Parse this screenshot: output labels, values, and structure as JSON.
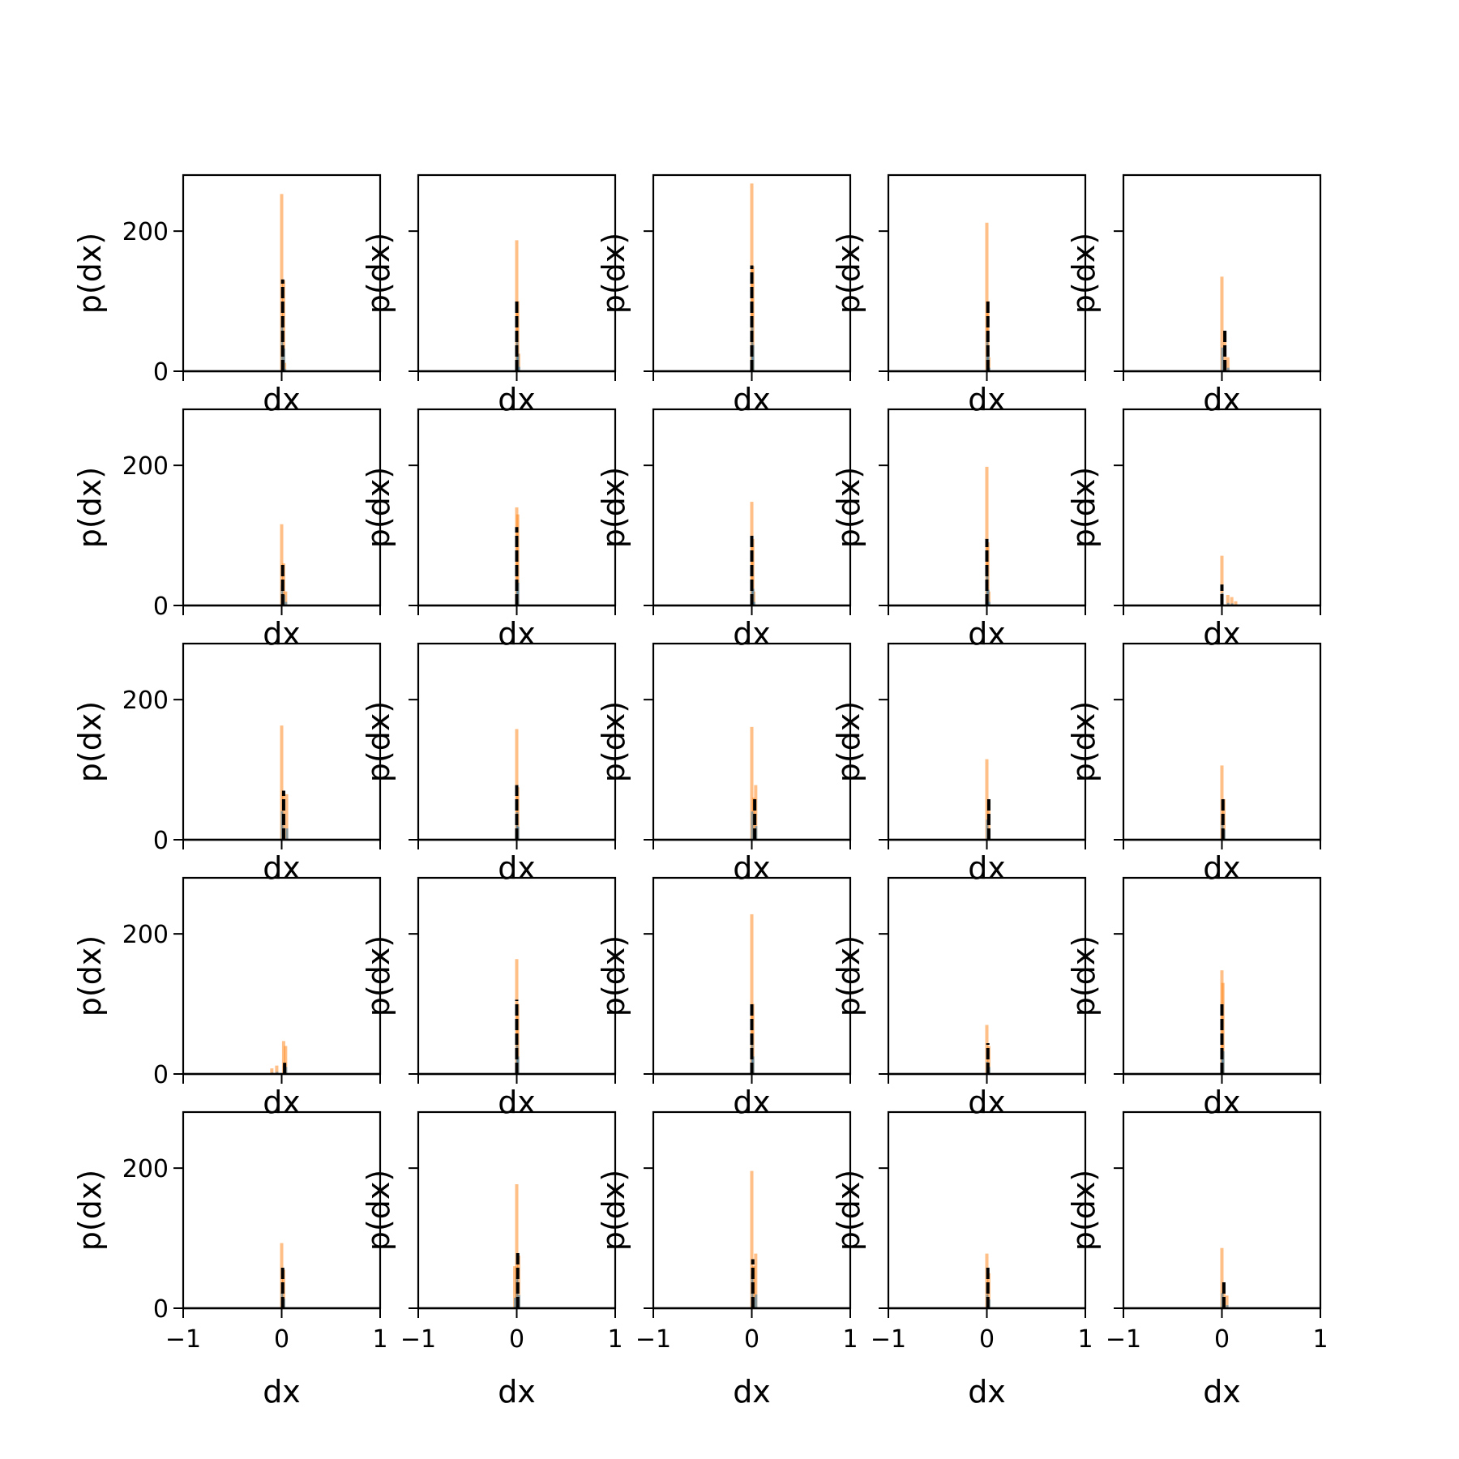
{
  "figure": {
    "rows": 5,
    "cols": 5,
    "xlabel": "dx",
    "ylabel": "p(dx)",
    "colors": {
      "blue": "#1f77b4",
      "orange": "#ff7f0e",
      "black": "#000000"
    }
  },
  "chart_data": [
    {
      "type": "bar",
      "xlabel": "dx",
      "ylabel": "p(dx)",
      "xlim": [
        -1,
        1
      ],
      "ylim": [
        0,
        280
      ],
      "xticks": [
        -1,
        0,
        1
      ],
      "yticks": [
        0,
        200
      ],
      "series": [
        {
          "values": [
            {
              "x": 0.0,
              "y": 253
            },
            {
              "x": 0.02,
              "y": 130
            },
            {
              "x": 0.03,
              "y": 12
            }
          ]
        },
        {
          "values": [
            {
              "x": 0.01,
              "y": 131
            }
          ]
        }
      ]
    },
    {
      "type": "bar",
      "xlabel": "dx",
      "ylabel": "p(dx)",
      "xlim": [
        -1,
        1
      ],
      "ylim": [
        0,
        280
      ],
      "xticks": [
        -1,
        0,
        1
      ],
      "yticks": [
        0,
        200
      ],
      "series": [
        {
          "values": [
            {
              "x": 0.0,
              "y": 187
            },
            {
              "x": 0.01,
              "y": 100
            },
            {
              "x": 0.02,
              "y": 25
            }
          ]
        },
        {
          "values": [
            {
              "x": 0.0,
              "y": 100
            }
          ]
        }
      ]
    },
    {
      "type": "bar",
      "xlabel": "dx",
      "ylabel": "p(dx)",
      "xlim": [
        -1,
        1
      ],
      "ylim": [
        0,
        280
      ],
      "xticks": [
        -1,
        0,
        1
      ],
      "yticks": [
        0,
        200
      ],
      "series": [
        {
          "values": [
            {
              "x": 0.0,
              "y": 268
            },
            {
              "x": 0.01,
              "y": 150
            }
          ]
        },
        {
          "values": [
            {
              "x": 0.0,
              "y": 151
            }
          ]
        }
      ]
    },
    {
      "type": "bar",
      "xlabel": "dx",
      "ylabel": "p(dx)",
      "xlim": [
        -1,
        1
      ],
      "ylim": [
        0,
        280
      ],
      "xticks": [
        -1,
        0,
        1
      ],
      "yticks": [
        0,
        200
      ],
      "series": [
        {
          "values": [
            {
              "x": 0.0,
              "y": 212
            },
            {
              "x": 0.01,
              "y": 100
            },
            {
              "x": 0.02,
              "y": 20
            }
          ]
        },
        {
          "values": [
            {
              "x": 0.01,
              "y": 103
            }
          ]
        }
      ]
    },
    {
      "type": "bar",
      "xlabel": "dx",
      "ylabel": "p(dx)",
      "xlim": [
        -1,
        1
      ],
      "ylim": [
        0,
        280
      ],
      "xticks": [
        -1,
        0,
        1
      ],
      "yticks": [
        0,
        200
      ],
      "series": [
        {
          "values": [
            {
              "x": 0.0,
              "y": 135
            },
            {
              "x": 0.03,
              "y": 57
            },
            {
              "x": 0.06,
              "y": 20
            }
          ]
        },
        {
          "values": [
            {
              "x": 0.03,
              "y": 58
            }
          ]
        }
      ]
    },
    {
      "type": "bar",
      "xlabel": "dx",
      "ylabel": "p(dx)",
      "xlim": [
        -1,
        1
      ],
      "ylim": [
        0,
        280
      ],
      "xticks": [
        -1,
        0,
        1
      ],
      "yticks": [
        0,
        200
      ],
      "series": [
        {
          "values": [
            {
              "x": 0.0,
              "y": 116
            },
            {
              "x": 0.02,
              "y": 60
            },
            {
              "x": 0.04,
              "y": 20
            }
          ]
        },
        {
          "values": [
            {
              "x": 0.01,
              "y": 62
            }
          ]
        }
      ]
    },
    {
      "type": "bar",
      "xlabel": "dx",
      "ylabel": "p(dx)",
      "xlim": [
        -1,
        1
      ],
      "ylim": [
        0,
        280
      ],
      "xticks": [
        -1,
        0,
        1
      ],
      "yticks": [
        0,
        200
      ],
      "series": [
        {
          "values": [
            {
              "x": 0.0,
              "y": 140
            },
            {
              "x": 0.01,
              "y": 130
            }
          ]
        },
        {
          "values": [
            {
              "x": 0.0,
              "y": 112
            }
          ]
        }
      ]
    },
    {
      "type": "bar",
      "xlabel": "dx",
      "ylabel": "p(dx)",
      "xlim": [
        -1,
        1
      ],
      "ylim": [
        0,
        280
      ],
      "xticks": [
        -1,
        0,
        1
      ],
      "yticks": [
        0,
        200
      ],
      "series": [
        {
          "values": [
            {
              "x": 0.0,
              "y": 148
            },
            {
              "x": 0.01,
              "y": 95
            },
            {
              "x": 0.02,
              "y": 20
            }
          ]
        },
        {
          "values": [
            {
              "x": 0.0,
              "y": 100
            }
          ]
        }
      ]
    },
    {
      "type": "bar",
      "xlabel": "dx",
      "ylabel": "p(dx)",
      "xlim": [
        -1,
        1
      ],
      "ylim": [
        0,
        280
      ],
      "xticks": [
        -1,
        0,
        1
      ],
      "yticks": [
        0,
        200
      ],
      "series": [
        {
          "values": [
            {
              "x": 0.0,
              "y": 198
            },
            {
              "x": 0.01,
              "y": 90
            },
            {
              "x": 0.02,
              "y": 20
            }
          ]
        },
        {
          "values": [
            {
              "x": 0.0,
              "y": 95
            }
          ]
        }
      ]
    },
    {
      "type": "bar",
      "xlabel": "dx",
      "ylabel": "p(dx)",
      "xlim": [
        -1,
        1
      ],
      "ylim": [
        0,
        280
      ],
      "xticks": [
        -1,
        0,
        1
      ],
      "yticks": [
        0,
        200
      ],
      "series": [
        {
          "values": [
            {
              "x": 0.0,
              "y": 71
            },
            {
              "x": 0.06,
              "y": 15
            },
            {
              "x": 0.1,
              "y": 12
            },
            {
              "x": 0.14,
              "y": 6
            }
          ]
        },
        {
          "values": [
            {
              "x": 0.0,
              "y": 30
            }
          ]
        }
      ]
    },
    {
      "type": "bar",
      "xlabel": "dx",
      "ylabel": "p(dx)",
      "xlim": [
        -1,
        1
      ],
      "ylim": [
        0,
        280
      ],
      "xticks": [
        -1,
        0,
        1
      ],
      "yticks": [
        0,
        200
      ],
      "series": [
        {
          "values": [
            {
              "x": 0.0,
              "y": 163
            },
            {
              "x": 0.02,
              "y": 68
            },
            {
              "x": 0.05,
              "y": 65
            }
          ]
        },
        {
          "values": [
            {
              "x": 0.02,
              "y": 70
            }
          ]
        }
      ]
    },
    {
      "type": "bar",
      "xlabel": "dx",
      "ylabel": "p(dx)",
      "xlim": [
        -1,
        1
      ],
      "ylim": [
        0,
        280
      ],
      "xticks": [
        -1,
        0,
        1
      ],
      "yticks": [
        0,
        200
      ],
      "series": [
        {
          "values": [
            {
              "x": 0.0,
              "y": 158
            },
            {
              "x": 0.01,
              "y": 75
            }
          ]
        },
        {
          "values": [
            {
              "x": 0.0,
              "y": 78
            }
          ]
        }
      ]
    },
    {
      "type": "bar",
      "xlabel": "dx",
      "ylabel": "p(dx)",
      "xlim": [
        -1,
        1
      ],
      "ylim": [
        0,
        280
      ],
      "xticks": [
        -1,
        0,
        1
      ],
      "yticks": [
        0,
        200
      ],
      "series": [
        {
          "values": [
            {
              "x": 0.0,
              "y": 161
            },
            {
              "x": 0.02,
              "y": 60
            },
            {
              "x": 0.04,
              "y": 78
            }
          ]
        },
        {
          "values": [
            {
              "x": 0.03,
              "y": 62
            }
          ]
        }
      ]
    },
    {
      "type": "bar",
      "xlabel": "dx",
      "ylabel": "p(dx)",
      "xlim": [
        -1,
        1
      ],
      "ylim": [
        0,
        280
      ],
      "xticks": [
        -1,
        0,
        1
      ],
      "yticks": [
        0,
        200
      ],
      "series": [
        {
          "values": [
            {
              "x": 0.0,
              "y": 115
            },
            {
              "x": 0.02,
              "y": 55
            }
          ]
        },
        {
          "values": [
            {
              "x": 0.02,
              "y": 58
            }
          ]
        }
      ]
    },
    {
      "type": "bar",
      "xlabel": "dx",
      "ylabel": "p(dx)",
      "xlim": [
        -1,
        1
      ],
      "ylim": [
        0,
        280
      ],
      "xticks": [
        -1,
        0,
        1
      ],
      "yticks": [
        0,
        200
      ],
      "series": [
        {
          "values": [
            {
              "x": 0.0,
              "y": 106
            },
            {
              "x": 0.02,
              "y": 58
            }
          ]
        },
        {
          "values": [
            {
              "x": 0.01,
              "y": 60
            }
          ]
        }
      ]
    },
    {
      "type": "bar",
      "xlabel": "dx",
      "ylabel": "p(dx)",
      "xlim": [
        -1,
        1
      ],
      "ylim": [
        0,
        280
      ],
      "xticks": [
        -1,
        0,
        1
      ],
      "yticks": [
        0,
        200
      ],
      "series": [
        {
          "values": [
            {
              "x": -0.1,
              "y": 8
            },
            {
              "x": -0.05,
              "y": 12
            },
            {
              "x": 0.02,
              "y": 47
            },
            {
              "x": 0.04,
              "y": 40
            }
          ]
        },
        {
          "values": [
            {
              "x": 0.03,
              "y": 16
            }
          ]
        }
      ]
    },
    {
      "type": "bar",
      "xlabel": "dx",
      "ylabel": "p(dx)",
      "xlim": [
        -1,
        1
      ],
      "ylim": [
        0,
        280
      ],
      "xticks": [
        -1,
        0,
        1
      ],
      "yticks": [
        0,
        200
      ],
      "series": [
        {
          "values": [
            {
              "x": 0.0,
              "y": 164
            },
            {
              "x": 0.01,
              "y": 100
            }
          ]
        },
        {
          "values": [
            {
              "x": 0.0,
              "y": 106
            }
          ]
        }
      ]
    },
    {
      "type": "bar",
      "xlabel": "dx",
      "ylabel": "p(dx)",
      "xlim": [
        -1,
        1
      ],
      "ylim": [
        0,
        280
      ],
      "xticks": [
        -1,
        0,
        1
      ],
      "yticks": [
        0,
        200
      ],
      "series": [
        {
          "values": [
            {
              "x": 0.0,
              "y": 228
            },
            {
              "x": 0.01,
              "y": 100
            }
          ]
        },
        {
          "values": [
            {
              "x": 0.0,
              "y": 103
            }
          ]
        }
      ]
    },
    {
      "type": "bar",
      "xlabel": "dx",
      "ylabel": "p(dx)",
      "xlim": [
        -1,
        1
      ],
      "ylim": [
        0,
        280
      ],
      "xticks": [
        -1,
        0,
        1
      ],
      "yticks": [
        0,
        200
      ],
      "series": [
        {
          "values": [
            {
              "x": 0.0,
              "y": 70
            },
            {
              "x": 0.02,
              "y": 40
            }
          ]
        },
        {
          "values": [
            {
              "x": 0.01,
              "y": 44
            }
          ]
        }
      ]
    },
    {
      "type": "bar",
      "xlabel": "dx",
      "ylabel": "p(dx)",
      "xlim": [
        -1,
        1
      ],
      "ylim": [
        0,
        280
      ],
      "xticks": [
        -1,
        0,
        1
      ],
      "yticks": [
        0,
        200
      ],
      "series": [
        {
          "values": [
            {
              "x": 0.0,
              "y": 148
            },
            {
              "x": 0.01,
              "y": 130
            }
          ]
        },
        {
          "values": [
            {
              "x": 0.0,
              "y": 102
            }
          ]
        }
      ]
    },
    {
      "type": "bar",
      "xlabel": "dx",
      "ylabel": "p(dx)",
      "xlim": [
        -1,
        1
      ],
      "ylim": [
        0,
        280
      ],
      "xticks": [
        -1,
        0,
        1
      ],
      "yticks": [
        0,
        200
      ],
      "series": [
        {
          "values": [
            {
              "x": 0.0,
              "y": 93
            },
            {
              "x": 0.02,
              "y": 55
            }
          ]
        },
        {
          "values": [
            {
              "x": 0.01,
              "y": 60
            }
          ]
        }
      ]
    },
    {
      "type": "bar",
      "xlabel": "dx",
      "ylabel": "p(dx)",
      "xlim": [
        -1,
        1
      ],
      "ylim": [
        0,
        280
      ],
      "xticks": [
        -1,
        0,
        1
      ],
      "yticks": [
        0,
        200
      ],
      "series": [
        {
          "values": [
            {
              "x": -0.02,
              "y": 60
            },
            {
              "x": 0.0,
              "y": 177
            },
            {
              "x": 0.02,
              "y": 75
            }
          ]
        },
        {
          "values": [
            {
              "x": 0.01,
              "y": 80
            }
          ]
        }
      ]
    },
    {
      "type": "bar",
      "xlabel": "dx",
      "ylabel": "p(dx)",
      "xlim": [
        -1,
        1
      ],
      "ylim": [
        0,
        280
      ],
      "xticks": [
        -1,
        0,
        1
      ],
      "yticks": [
        0,
        200
      ],
      "series": [
        {
          "values": [
            {
              "x": 0.0,
              "y": 196
            },
            {
              "x": 0.02,
              "y": 60
            },
            {
              "x": 0.04,
              "y": 78
            }
          ]
        },
        {
          "values": [
            {
              "x": 0.01,
              "y": 70
            }
          ]
        }
      ]
    },
    {
      "type": "bar",
      "xlabel": "dx",
      "ylabel": "p(dx)",
      "xlim": [
        -1,
        1
      ],
      "ylim": [
        0,
        280
      ],
      "xticks": [
        -1,
        0,
        1
      ],
      "yticks": [
        0,
        200
      ],
      "series": [
        {
          "values": [
            {
              "x": 0.0,
              "y": 78
            },
            {
              "x": 0.02,
              "y": 50
            }
          ]
        },
        {
          "values": [
            {
              "x": 0.01,
              "y": 60
            }
          ]
        }
      ]
    },
    {
      "type": "bar",
      "xlabel": "dx",
      "ylabel": "p(dx)",
      "xlim": [
        -1,
        1
      ],
      "ylim": [
        0,
        280
      ],
      "xticks": [
        -1,
        0,
        1
      ],
      "yticks": [
        0,
        200
      ],
      "series": [
        {
          "values": [
            {
              "x": 0.0,
              "y": 86
            },
            {
              "x": 0.02,
              "y": 35
            },
            {
              "x": 0.05,
              "y": 18
            }
          ]
        },
        {
          "values": [
            {
              "x": 0.02,
              "y": 38
            }
          ]
        }
      ]
    }
  ]
}
